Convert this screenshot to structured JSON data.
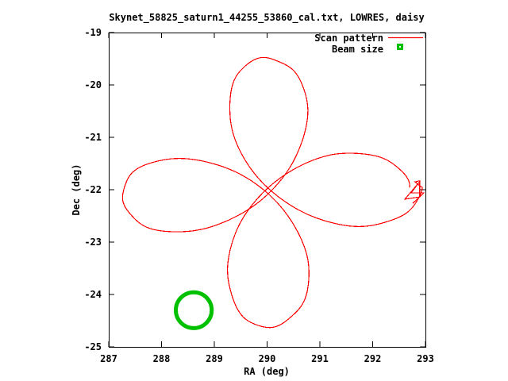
{
  "figure": {
    "background": "#ffffff",
    "axis_color": "#000000",
    "text_color": "#000000"
  },
  "chart_data": {
    "type": "line",
    "title": "Skynet_58825_saturn1_44255_53860_cal.txt, LOWRES, daisy",
    "xlabel": "RA (deg)",
    "ylabel": "Dec (deg)",
    "x_range": [
      287,
      293
    ],
    "y_range": [
      -25,
      -19
    ],
    "x_ticks": [
      287,
      288,
      289,
      290,
      291,
      292,
      293
    ],
    "y_ticks": [
      -19,
      -20,
      -21,
      -22,
      -23,
      -24,
      -25
    ],
    "grid": false,
    "legend": {
      "position": "top-right-inside",
      "entries": [
        {
          "label": "Scan pattern",
          "color": "#ff0000",
          "sample": "line"
        },
        {
          "label": "Beam size",
          "color": "#00c000",
          "sample": "square-marker"
        }
      ]
    },
    "series": [
      {
        "name": "Scan pattern",
        "color": "#ff0000",
        "shape": "four-petal-daisy-rose r = R*cos(2*theta)",
        "center": {
          "ra": 290.02,
          "dec": -22.05
        },
        "petal_radius_deg": 2.57,
        "rotation_deg": 2.0,
        "ra_stretch": 1.079,
        "ra_drift_deg": 0.24,
        "samples": 480,
        "jitter": {
          "amp1": 0.02,
          "freq1": 11,
          "phase1": 1.3,
          "amp2": 0.012,
          "freq2": 26,
          "phase2": 0.7
        },
        "petal_tips": [
          {
            "ra": 292.77,
            "dec": -21.97
          },
          {
            "ra": 290.03,
            "dec": -24.62
          },
          {
            "ra": 287.27,
            "dec": -22.05
          },
          {
            "ra": 289.89,
            "dec": -19.47
          }
        ],
        "end_hook": [
          [
            292.8,
            -21.85
          ],
          [
            292.89,
            -21.83
          ],
          [
            292.89,
            -22.14
          ],
          [
            292.61,
            -22.18
          ],
          [
            292.88,
            -21.86
          ],
          [
            292.73,
            -22.06
          ],
          [
            292.97,
            -22.06
          ],
          [
            292.76,
            -22.26
          ]
        ]
      },
      {
        "name": "Beam size",
        "color": "#00c000",
        "shape": "circle",
        "center": {
          "ra": 288.61,
          "dec": -24.3
        },
        "radius_deg": 0.34,
        "stroke_px": 5
      }
    ]
  }
}
